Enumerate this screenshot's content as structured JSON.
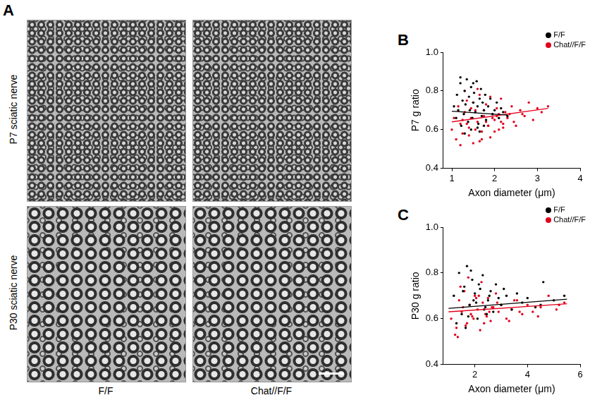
{
  "panel_a": {
    "label": "A",
    "rows": [
      "P7 sciatic nerve",
      "P30 sciatic nerve"
    ],
    "columns": [
      "F/F",
      "Chat//F/F"
    ]
  },
  "chart_data": [
    {
      "panel": "B",
      "type": "scatter",
      "x_label": "Axon diameter (μm)",
      "y_label": "P7 g ratio",
      "xlim": [
        0.8,
        4
      ],
      "xticks": [
        1,
        2,
        3,
        4
      ],
      "ylim": [
        0.4,
        1.0
      ],
      "yticks": [
        0.4,
        0.6,
        0.8,
        {
          "value": 1.0,
          "label": "1.0"
        }
      ],
      "grid": false,
      "legend": "upper right",
      "marker": "circle",
      "series": [
        {
          "name": "F/F",
          "color": "#000000",
          "x": [
            1.05,
            1.1,
            1.12,
            1.15,
            1.2,
            1.22,
            1.25,
            1.28,
            1.3,
            1.32,
            1.35,
            1.38,
            1.4,
            1.42,
            1.45,
            1.48,
            1.5,
            1.52,
            1.55,
            1.58,
            1.6,
            1.62,
            1.65,
            1.68,
            1.7,
            1.72,
            1.75,
            1.78,
            1.8,
            1.85,
            1.9,
            1.95,
            2.0,
            2.05,
            2.1,
            2.15,
            2.2,
            2.3,
            1.3,
            1.45,
            1.6,
            1.75,
            1.2,
            1.5,
            1.65
          ],
          "values": [
            0.72,
            0.66,
            0.78,
            0.7,
            0.84,
            0.62,
            0.75,
            0.68,
            0.8,
            0.73,
            0.86,
            0.64,
            0.77,
            0.7,
            0.82,
            0.66,
            0.74,
            0.79,
            0.69,
            0.85,
            0.72,
            0.63,
            0.76,
            0.81,
            0.67,
            0.74,
            0.7,
            0.78,
            0.65,
            0.72,
            0.76,
            0.68,
            0.7,
            0.74,
            0.66,
            0.71,
            0.69,
            0.67,
            0.58,
            0.6,
            0.61,
            0.62,
            0.87,
            0.84,
            0.59
          ],
          "fit": {
            "x": [
              1.0,
              2.3
            ],
            "values": [
              0.695,
              0.675
            ]
          }
        },
        {
          "name": "Chat//F/F",
          "color": "#e3001b",
          "x": [
            1.0,
            1.05,
            1.1,
            1.15,
            1.2,
            1.25,
            1.3,
            1.35,
            1.4,
            1.45,
            1.5,
            1.55,
            1.6,
            1.65,
            1.7,
            1.75,
            1.8,
            1.85,
            1.9,
            1.95,
            2.0,
            2.05,
            2.1,
            2.15,
            2.2,
            2.25,
            2.3,
            2.4,
            2.5,
            2.6,
            2.7,
            2.8,
            2.9,
            3.0,
            3.1,
            3.25,
            1.2,
            1.3,
            1.4,
            1.5,
            1.6,
            1.7,
            1.8,
            1.9,
            2.0,
            2.1,
            2.2,
            1.35,
            1.55,
            1.75,
            1.95,
            2.15,
            2.35,
            1.25,
            1.45,
            1.65,
            1.85,
            2.05,
            2.45,
            2.65
          ],
          "values": [
            0.6,
            0.66,
            0.55,
            0.72,
            0.63,
            0.58,
            0.69,
            0.75,
            0.61,
            0.66,
            0.53,
            0.7,
            0.64,
            0.78,
            0.59,
            0.67,
            0.73,
            0.62,
            0.56,
            0.68,
            0.65,
            0.71,
            0.6,
            0.76,
            0.63,
            0.69,
            0.66,
            0.72,
            0.62,
            0.7,
            0.67,
            0.74,
            0.65,
            0.71,
            0.69,
            0.72,
            0.52,
            0.8,
            0.57,
            0.74,
            0.81,
            0.55,
            0.64,
            0.77,
            0.59,
            0.68,
            0.61,
            0.63,
            0.6,
            0.7,
            0.66,
            0.64,
            0.68,
            0.65,
            0.71,
            0.54,
            0.62,
            0.67,
            0.64,
            0.68
          ],
          "fit": {
            "x": [
              1.0,
              3.25
            ],
            "values": [
              0.64,
              0.71
            ]
          }
        }
      ]
    },
    {
      "panel": "C",
      "type": "scatter",
      "x_label": "Axon diameter (μm)",
      "y_label": "P30 g ratio",
      "xlim": [
        0.8,
        6
      ],
      "xticks": [
        2,
        4,
        6
      ],
      "ylim": [
        0.4,
        1.0
      ],
      "yticks": [
        0.4,
        0.6,
        0.8,
        {
          "value": 1.0,
          "label": "1.0"
        }
      ],
      "grid": false,
      "legend": "upper right",
      "marker": "circle",
      "series": [
        {
          "name": "F/F",
          "color": "#000000",
          "x": [
            1.2,
            1.4,
            1.5,
            1.6,
            1.7,
            1.8,
            1.9,
            2.0,
            2.1,
            2.2,
            2.3,
            2.4,
            2.5,
            2.6,
            2.7,
            2.8,
            2.9,
            3.0,
            3.2,
            3.4,
            3.6,
            3.8,
            4.0,
            4.3,
            4.6,
            5.0,
            5.4,
            1.3,
            1.55,
            1.75,
            1.95,
            2.15,
            2.35,
            2.55,
            1.65,
            1.85,
            2.05,
            2.45,
            3.1,
            4.5
          ],
          "values": [
            0.7,
            0.8,
            0.62,
            0.74,
            0.83,
            0.66,
            0.77,
            0.71,
            0.6,
            0.73,
            0.79,
            0.65,
            0.68,
            0.72,
            0.63,
            0.75,
            0.69,
            0.66,
            0.7,
            0.64,
            0.71,
            0.67,
            0.69,
            0.65,
            0.76,
            0.68,
            0.7,
            0.58,
            0.72,
            0.61,
            0.68,
            0.75,
            0.64,
            0.7,
            0.56,
            0.81,
            0.67,
            0.62,
            0.73,
            0.66
          ],
          "fit": {
            "x": [
              1.0,
              5.5
            ],
            "values": [
              0.645,
              0.685
            ]
          }
        },
        {
          "name": "Chat//F/F",
          "color": "#e3001b",
          "x": [
            1.1,
            1.3,
            1.4,
            1.5,
            1.6,
            1.7,
            1.8,
            1.9,
            2.0,
            2.1,
            2.2,
            2.3,
            2.4,
            2.5,
            2.6,
            2.7,
            2.8,
            2.9,
            3.0,
            3.2,
            3.4,
            3.6,
            3.8,
            4.0,
            4.2,
            4.5,
            4.8,
            5.1,
            5.4,
            1.25,
            1.45,
            1.65,
            1.85,
            2.05,
            2.25,
            2.45,
            2.65,
            2.85,
            3.3,
            3.7,
            1.35,
            1.55,
            1.75,
            1.95,
            2.15,
            2.35,
            2.55,
            3.5,
            4.4,
            5.2
          ],
          "values": [
            0.6,
            0.56,
            0.68,
            0.63,
            0.72,
            0.58,
            0.66,
            0.61,
            0.7,
            0.64,
            0.55,
            0.67,
            0.62,
            0.69,
            0.59,
            0.65,
            0.71,
            0.63,
            0.66,
            0.6,
            0.64,
            0.68,
            0.62,
            0.66,
            0.63,
            0.65,
            0.7,
            0.64,
            0.67,
            0.53,
            0.74,
            0.57,
            0.62,
            0.69,
            0.76,
            0.61,
            0.65,
            0.67,
            0.59,
            0.63,
            0.52,
            0.65,
            0.78,
            0.6,
            0.7,
            0.58,
            0.63,
            0.68,
            0.61,
            0.66
          ],
          "fit": {
            "x": [
              1.0,
              5.5
            ],
            "values": [
              0.63,
              0.665
            ]
          }
        }
      ]
    }
  ]
}
